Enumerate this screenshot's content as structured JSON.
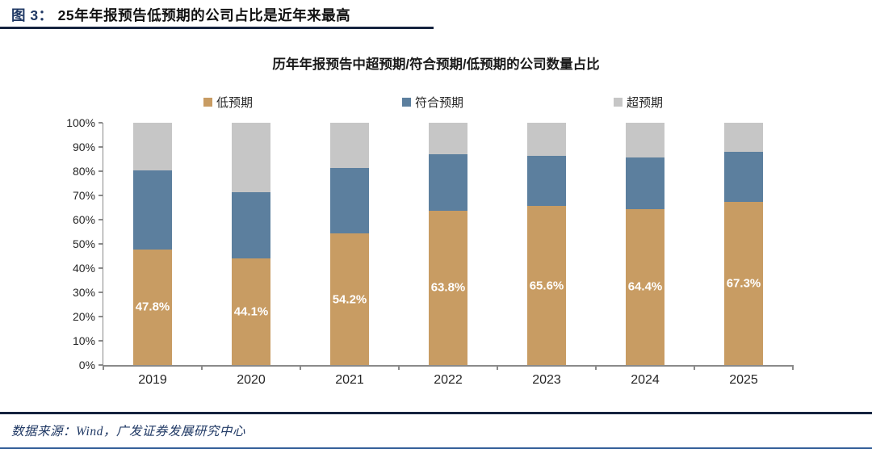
{
  "header": {
    "figure_label": "图 3：",
    "title": "25年年报预告低预期的公司占比是近年来最高"
  },
  "chart_data": {
    "type": "bar",
    "stacked": true,
    "title": "历年年报预告中超预期/符合预期/低预期的公司数量占比",
    "categories": [
      "2019",
      "2020",
      "2021",
      "2022",
      "2023",
      "2024",
      "2025"
    ],
    "series": [
      {
        "name": "低预期",
        "color": "#C89C63",
        "values": [
          47.8,
          44.1,
          54.2,
          63.8,
          65.6,
          64.4,
          67.3
        ],
        "labels": [
          "47.8%",
          "44.1%",
          "54.2%",
          "63.8%",
          "65.6%",
          "64.4%",
          "67.3%"
        ]
      },
      {
        "name": "符合预期",
        "color": "#5C7F9E",
        "values": [
          32.7,
          27.4,
          27.1,
          23.1,
          20.6,
          21.3,
          20.8
        ],
        "labels": null
      },
      {
        "name": "超预期",
        "color": "#C6C6C6",
        "values": [
          19.5,
          28.5,
          18.7,
          13.1,
          13.8,
          14.3,
          11.9
        ],
        "labels": null
      }
    ],
    "y_ticks": [
      "0%",
      "10%",
      "20%",
      "30%",
      "40%",
      "50%",
      "60%",
      "70%",
      "80%",
      "90%",
      "100%"
    ],
    "ylim": [
      0,
      100
    ],
    "legend_position": "top",
    "grid": false
  },
  "footer": {
    "source": "数据来源：Wind，广发证券发展研究中心"
  },
  "colors": {
    "accent_navy": "#1F3864",
    "rule_navy": "#15233F",
    "axis_gray": "#8A8A8A",
    "bar_low": "#C89C63",
    "bar_meet": "#5C7F9E",
    "bar_beat": "#C6C6C6",
    "bottom_accent": "#2E5B97"
  }
}
